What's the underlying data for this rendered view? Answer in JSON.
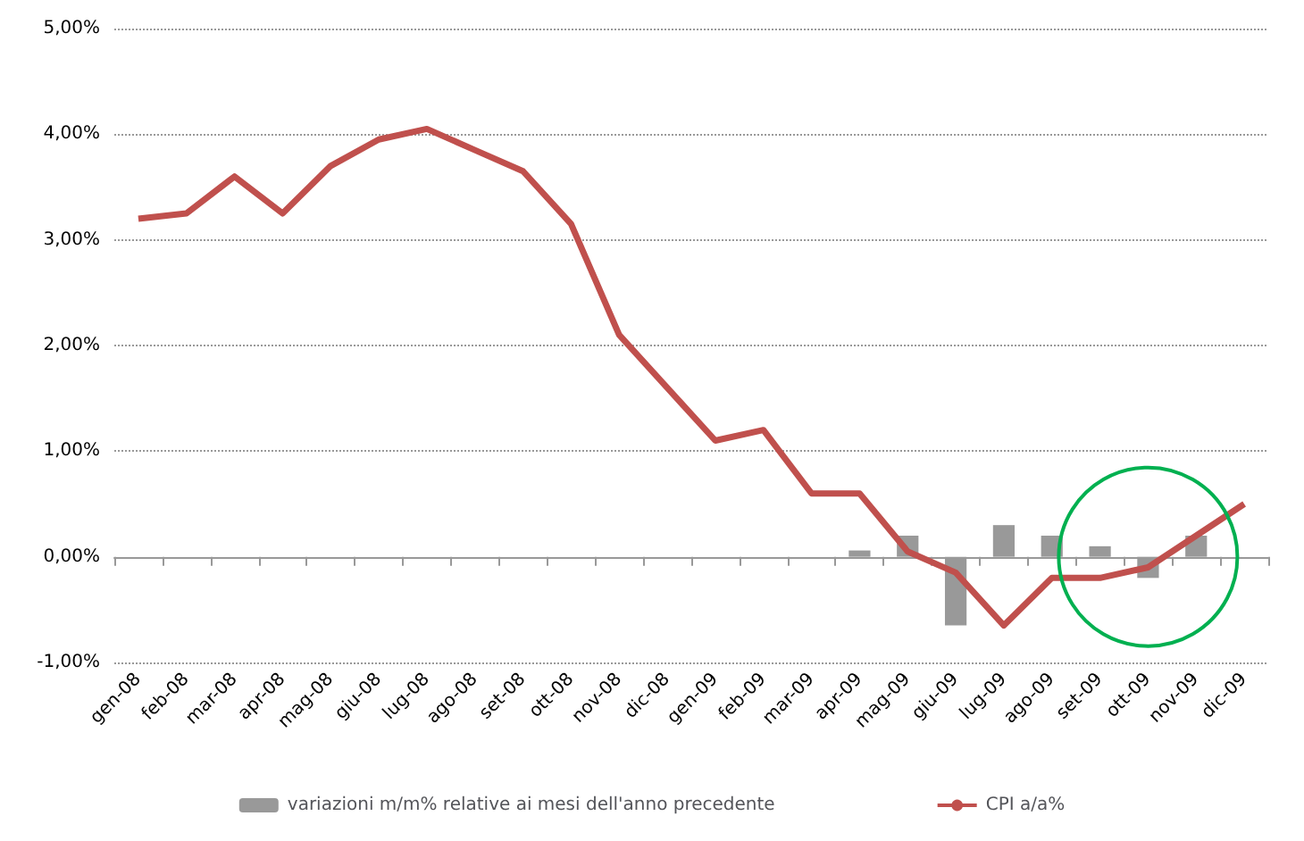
{
  "chart_data": {
    "type": "bar",
    "categories": [
      "gen-08",
      "feb-08",
      "mar-08",
      "apr-08",
      "mag-08",
      "giu-08",
      "lug-08",
      "ago-08",
      "set-08",
      "ott-08",
      "nov-08",
      "dic-08",
      "gen-09",
      "feb-09",
      "mar-09",
      "apr-09",
      "mag-09",
      "giu-09",
      "lug-09",
      "ago-09",
      "set-09",
      "ott-09",
      "nov-09",
      "dic-09"
    ],
    "series": [
      {
        "name": "variazioni m/m% relative ai mesi dell'anno precedente",
        "color": "#999999",
        "values": [
          null,
          null,
          null,
          null,
          null,
          null,
          null,
          null,
          null,
          null,
          null,
          null,
          null,
          null,
          null,
          0.06,
          0.2,
          -0.65,
          0.3,
          0.2,
          0.1,
          -0.2,
          0.2,
          null
        ]
      },
      {
        "name": "CPI a/a%",
        "type": "line",
        "color": "#c0504d",
        "values": [
          3.2,
          3.25,
          3.6,
          3.25,
          3.7,
          3.95,
          4.05,
          3.85,
          3.65,
          3.15,
          2.1,
          1.6,
          1.1,
          1.2,
          0.6,
          0.6,
          0.05,
          -0.15,
          -0.65,
          -0.2,
          -0.2,
          -0.1,
          0.2,
          0.5
        ]
      }
    ],
    "ylim": [
      -1,
      5
    ],
    "yticks": [
      {
        "value": -1,
        "label": "-1,00%"
      },
      {
        "value": 0,
        "label": "0,00%"
      },
      {
        "value": 1,
        "label": "1,00%"
      },
      {
        "value": 2,
        "label": "2,00%"
      },
      {
        "value": 3,
        "label": "3,00%"
      },
      {
        "value": 4,
        "label": "4,00%"
      },
      {
        "value": 5,
        "label": "5,00%"
      }
    ],
    "grid": "y",
    "legend": "bottom",
    "marker": "none"
  }
}
